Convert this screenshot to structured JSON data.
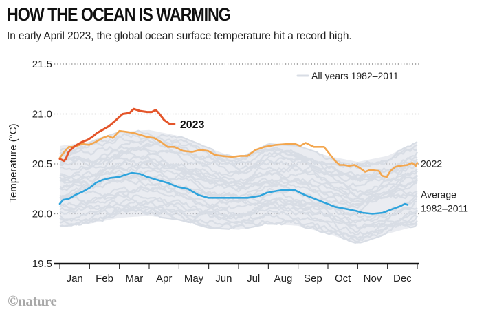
{
  "header": {
    "title": "HOW THE OCEAN IS WARMING",
    "subtitle": "In early April 2023, the global ocean surface temperature hit a record high."
  },
  "credit": "©nature",
  "colors": {
    "series_2023": "#e4552a",
    "series_2022": "#f3a64e",
    "series_average": "#2ea3dc",
    "all_years": "#d8dde5",
    "axis": "#111111",
    "grid": "#777777"
  },
  "chart_data": {
    "type": "line",
    "title": "HOW THE OCEAN IS WARMING",
    "subtitle": "In early April 2023, the global ocean surface temperature hit a record high.",
    "xlabel": "",
    "ylabel": "Temperature (°C)",
    "ylim": [
      19.5,
      21.5
    ],
    "yticks": [
      19.5,
      20.0,
      20.5,
      21.0,
      21.5
    ],
    "ytick_labels": [
      "19.5",
      "20.0",
      "20.5",
      "21.0",
      "21.5"
    ],
    "xlim": [
      0,
      12
    ],
    "xtick_labels": [
      "Jan",
      "Feb",
      "Mar",
      "Apr",
      "May",
      "Jun",
      "Jul",
      "Aug",
      "Sep",
      "Oct",
      "Nov",
      "Dec"
    ],
    "grid": "horizontal-dotted",
    "legend": {
      "label": "All years 1982–2011",
      "placement": "top-right"
    },
    "series": [
      {
        "name": "2023",
        "label": "2023",
        "x_month": [
          0.0,
          0.14,
          0.2,
          0.3,
          0.43,
          0.57,
          0.75,
          0.93,
          1.09,
          1.25,
          1.43,
          1.66,
          1.89,
          2.11,
          2.34,
          2.48,
          2.69,
          2.93,
          3.09,
          3.22,
          3.32,
          3.5,
          3.69,
          3.85
        ],
        "values": [
          20.55,
          20.53,
          20.55,
          20.62,
          20.66,
          20.69,
          20.72,
          20.74,
          20.77,
          20.81,
          20.84,
          20.88,
          20.94,
          21.0,
          21.01,
          21.05,
          21.03,
          21.02,
          21.02,
          21.04,
          21.01,
          20.94,
          20.9,
          20.9
        ]
      },
      {
        "name": "2022",
        "label": "2022",
        "x_month": [
          0.0,
          0.18,
          0.3,
          0.41,
          0.57,
          0.75,
          0.98,
          1.21,
          1.44,
          1.62,
          1.78,
          2.0,
          2.25,
          2.48,
          2.71,
          2.93,
          3.16,
          3.39,
          3.62,
          3.85,
          4.14,
          4.44,
          4.71,
          4.98,
          5.21,
          5.44,
          5.78,
          6.07,
          6.3,
          6.57,
          6.87,
          7.25,
          7.66,
          7.89,
          8.07,
          8.25,
          8.53,
          8.87,
          9.03,
          9.21,
          9.39,
          9.55,
          9.71,
          9.89,
          10.07,
          10.25,
          10.41,
          10.71,
          10.82,
          10.98,
          11.1,
          11.26,
          11.4,
          11.67,
          11.83,
          11.95,
          12.0
        ],
        "values": [
          20.56,
          20.63,
          20.67,
          20.67,
          20.68,
          20.7,
          20.69,
          20.72,
          20.76,
          20.78,
          20.76,
          20.83,
          20.82,
          20.81,
          20.79,
          20.77,
          20.76,
          20.72,
          20.67,
          20.67,
          20.63,
          20.62,
          20.64,
          20.63,
          20.59,
          20.58,
          20.57,
          20.58,
          20.58,
          20.64,
          20.67,
          20.69,
          20.7,
          20.7,
          20.68,
          20.71,
          20.67,
          20.67,
          20.61,
          20.54,
          20.49,
          20.49,
          20.48,
          20.49,
          20.46,
          20.42,
          20.44,
          20.43,
          20.38,
          20.37,
          20.43,
          20.47,
          20.48,
          20.49,
          20.51,
          20.48,
          20.51
        ]
      },
      {
        "name": "Average 1982–2011",
        "label_line1": "Average",
        "label_line2": "1982–2011",
        "x_month": [
          0.0,
          0.11,
          0.3,
          0.53,
          0.76,
          1.0,
          1.21,
          1.44,
          1.71,
          2.01,
          2.19,
          2.42,
          2.69,
          2.93,
          3.27,
          3.62,
          3.96,
          4.3,
          4.64,
          4.98,
          5.33,
          5.9,
          6.31,
          6.72,
          6.95,
          7.3,
          7.53,
          7.87,
          8.21,
          8.56,
          8.9,
          9.24,
          9.59,
          9.93,
          10.16,
          10.5,
          10.84,
          11.19,
          11.46,
          11.58,
          11.68
        ],
        "values": [
          20.1,
          20.14,
          20.15,
          20.19,
          20.22,
          20.26,
          20.31,
          20.34,
          20.36,
          20.37,
          20.39,
          20.41,
          20.4,
          20.37,
          20.34,
          20.31,
          20.27,
          20.25,
          20.19,
          20.16,
          20.16,
          20.16,
          20.16,
          20.18,
          20.21,
          20.23,
          20.24,
          20.24,
          20.19,
          20.15,
          20.11,
          20.07,
          20.05,
          20.03,
          20.01,
          20.0,
          20.01,
          20.05,
          20.08,
          20.1,
          20.09
        ]
      }
    ],
    "all_years_band": {
      "name": "All years 1982–2011",
      "description": "Individual yearly lines 1982–2011 forming a grey band around the average",
      "x_month": [
        0,
        1,
        2,
        3,
        4,
        5,
        6,
        7,
        8,
        9,
        10,
        11,
        12
      ],
      "upper": [
        20.68,
        20.72,
        20.82,
        20.84,
        20.78,
        20.66,
        20.55,
        20.7,
        20.68,
        20.58,
        20.52,
        20.58,
        20.72
      ],
      "lower": [
        19.87,
        19.9,
        19.96,
        19.98,
        19.94,
        19.86,
        19.84,
        19.9,
        19.88,
        19.8,
        19.7,
        19.8,
        19.88
      ]
    }
  }
}
